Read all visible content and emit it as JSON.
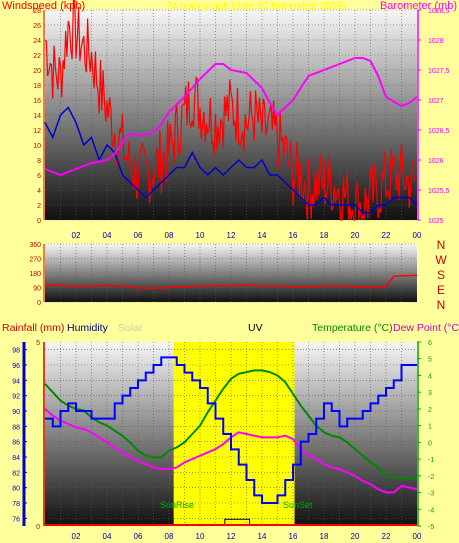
{
  "colors": {
    "page_bg": "#ffff9c",
    "wind": "#ff0000",
    "wind_avg": "#0000cc",
    "baro": "#ff00ff",
    "dir": "#ff0000",
    "rain": "#cc0000",
    "humidity": "#0000ff",
    "temp": "#008800",
    "dew": "#ff00ff",
    "uv": "#000000",
    "daylight": "#ffff00",
    "sun_label": "#00aa00",
    "solar": "#cfcfa0",
    "baro_axis": "#ff00ff",
    "temp_axis": "#00aa00",
    "hum_axis": "#0000cc"
  },
  "top": {
    "left_title": "Windspeed (kph)",
    "center_title": "24 hour graph (date 20 November 2008)",
    "right_title": "Barometer (mb)",
    "wind_ticks": [
      "0",
      "2",
      "4",
      "6",
      "8",
      "10",
      "12",
      "14",
      "16",
      "18",
      "20",
      "22",
      "24",
      "26",
      "28"
    ],
    "baro_ticks": [
      "1025",
      "1025,5",
      "1026",
      "1026,5",
      "1027",
      "1027,5",
      "1028",
      "1028,5"
    ]
  },
  "direction": {
    "ticks": [
      "0",
      "90",
      "180",
      "270",
      "360"
    ],
    "compass": [
      "N",
      "W",
      "S",
      "E",
      "N"
    ]
  },
  "bottom": {
    "rain_label": "Rainfall (mm)",
    "humidity_label": "Humidity",
    "solar_label": "Solar",
    "uv_label": "UV",
    "temp_label": "Temperature (°C)",
    "dew_label": "Dew Point (°C)",
    "hum_ticks": [
      "76",
      "78",
      "80",
      "82",
      "84",
      "86",
      "88",
      "90",
      "92",
      "94",
      "96",
      "98"
    ],
    "rain_ticks": [
      "0",
      "5"
    ],
    "temp_ticks": [
      "-5",
      "-4",
      "-3",
      "-2",
      "-1",
      "0",
      "1",
      "2",
      "3",
      "4",
      "5",
      "6"
    ],
    "sunrise_label": "SunRise",
    "sunset_label": "SunSet"
  },
  "x_ticks": [
    "02",
    "04",
    "06",
    "08",
    "10",
    "12",
    "14",
    "16",
    "18",
    "20",
    "22",
    "00"
  ],
  "chart_data": [
    {
      "type": "line",
      "title": "24 hour graph (date 20 November 2008)",
      "ylabel": "Windspeed (kph)",
      "y2label": "Barometer (mb)",
      "xlim": [
        0,
        24
      ],
      "ylim": [
        0,
        28
      ],
      "y2lim": [
        1025,
        1028.5
      ],
      "series": [
        {
          "name": "Windspeed (kph)",
          "axis": "left",
          "style": "gust",
          "x": [
            0,
            0.5,
            1,
            1.5,
            2,
            2.5,
            3,
            3.5,
            4,
            4.5,
            5,
            5.5,
            6,
            6.5,
            7,
            7.5,
            8,
            8.5,
            9,
            9.5,
            10,
            10.5,
            11,
            11.5,
            12,
            12.5,
            13,
            13.5,
            14,
            14.5,
            15,
            15.5,
            16,
            16.5,
            17,
            17.5,
            18,
            18.5,
            19,
            19.5,
            20,
            20.5,
            21,
            21.5,
            22,
            22.5,
            23,
            23.5,
            24
          ],
          "y": [
            24,
            20,
            19,
            26,
            25,
            23,
            22,
            18,
            15,
            12,
            10,
            7,
            6,
            6,
            7,
            8,
            9,
            12,
            14,
            17,
            15,
            14,
            13,
            14,
            15,
            14,
            13,
            14,
            12,
            12,
            11,
            9,
            6,
            6,
            4,
            5,
            5,
            5,
            4,
            3,
            2,
            2,
            3,
            4,
            5,
            6,
            6,
            5,
            5
          ]
        },
        {
          "name": "Average windspeed",
          "axis": "left",
          "style": "avg",
          "x": [
            0,
            0.5,
            1,
            1.5,
            2,
            2.5,
            3,
            3.5,
            4,
            4.5,
            5,
            5.5,
            6,
            6.5,
            7,
            7.5,
            8,
            8.5,
            9,
            9.5,
            10,
            10.5,
            11,
            11.5,
            12,
            12.5,
            13,
            13.5,
            14,
            14.5,
            15,
            15.5,
            16,
            16.5,
            17,
            17.5,
            18,
            18.5,
            19,
            19.5,
            20,
            20.5,
            21,
            21.5,
            22,
            22.5,
            23,
            23.5,
            24
          ],
          "y": [
            13,
            11,
            14,
            15,
            13,
            10,
            11,
            8,
            10,
            9,
            6,
            5,
            4,
            3,
            4,
            5,
            6,
            7,
            7,
            9,
            7,
            6,
            7,
            6,
            7,
            8,
            7,
            7,
            8,
            6,
            6,
            5,
            4,
            3,
            2,
            2,
            3,
            2,
            2,
            2,
            2,
            1,
            1,
            2,
            2,
            3,
            3,
            3,
            2
          ]
        },
        {
          "name": "Barometer (mb)",
          "axis": "right",
          "x": [
            0,
            1,
            2,
            3,
            4,
            4.5,
            5,
            5.5,
            6,
            7,
            7.5,
            8,
            9,
            10,
            11,
            11.5,
            12,
            13,
            14,
            14.5,
            15,
            16,
            17,
            18,
            19,
            20,
            20.5,
            21,
            21.5,
            22,
            23,
            23.5,
            24
          ],
          "y": [
            1025.85,
            1025.75,
            1025.85,
            1025.95,
            1026,
            1026.1,
            1026.3,
            1026.45,
            1026.4,
            1026.45,
            1026.6,
            1026.8,
            1027.05,
            1027.35,
            1027.6,
            1027.6,
            1027.5,
            1027.45,
            1027.2,
            1026.95,
            1026.75,
            1027,
            1027.4,
            1027.5,
            1027.6,
            1027.7,
            1027.7,
            1027.65,
            1027.4,
            1027.05,
            1026.9,
            1026.95,
            1027.05
          ]
        }
      ]
    },
    {
      "type": "line",
      "ylabel": "Wind direction",
      "xlim": [
        0,
        24
      ],
      "ylim": [
        0,
        360
      ],
      "series": [
        {
          "name": "Wind direction",
          "x": [
            0,
            1,
            2,
            3,
            4,
            5,
            6,
            7,
            8,
            9,
            10,
            11,
            12,
            13,
            14,
            15,
            16,
            17,
            18,
            19,
            20,
            21,
            22,
            22.5,
            23,
            24
          ],
          "y": [
            100,
            105,
            95,
            100,
            102,
            100,
            88,
            85,
            90,
            95,
            98,
            102,
            100,
            105,
            100,
            98,
            95,
            95,
            100,
            100,
            95,
            90,
            95,
            160,
            162,
            165
          ]
        }
      ]
    },
    {
      "type": "line",
      "ylabel": "Humidity",
      "y2label": "Temperature (°C)",
      "xlim": [
        0,
        24
      ],
      "ylim": [
        75,
        99
      ],
      "y2lim": [
        -5,
        6
      ],
      "daylight": [
        8.3,
        16.1
      ],
      "series": [
        {
          "name": "Humidity",
          "axis": "left",
          "x": [
            0,
            0.5,
            1,
            1.5,
            2,
            2.5,
            3,
            3.5,
            4,
            4.5,
            5,
            5.5,
            6,
            6.5,
            7,
            7.5,
            8,
            8.5,
            9,
            9.5,
            10,
            10.5,
            11,
            11.5,
            12,
            12.5,
            13,
            13.5,
            14,
            14.5,
            15,
            15.5,
            16,
            16.5,
            17,
            17.5,
            18,
            18.5,
            19,
            19.5,
            20,
            20.5,
            21,
            21.5,
            22,
            22.5,
            23,
            23.5,
            24
          ],
          "y": [
            89,
            88,
            90,
            91,
            90,
            90,
            89,
            89,
            89,
            91,
            92,
            93,
            94,
            95,
            96,
            97,
            97,
            96,
            95,
            94,
            93,
            91,
            89,
            87,
            85,
            83,
            81,
            79,
            78,
            78,
            79,
            81,
            83,
            86,
            87,
            89,
            91,
            90,
            88,
            89,
            89,
            90,
            91,
            92,
            93,
            94,
            96,
            96,
            96
          ]
        },
        {
          "name": "Temperature (°C)",
          "axis": "right",
          "x": [
            0,
            0.5,
            1,
            1.5,
            2,
            2.5,
            3,
            3.5,
            4,
            4.5,
            5,
            5.5,
            6,
            6.5,
            7,
            7.5,
            8,
            8.5,
            9,
            9.5,
            10,
            10.5,
            11,
            11.5,
            12,
            12.5,
            13,
            13.5,
            14,
            14.5,
            15,
            15.5,
            16,
            16.5,
            17,
            17.5,
            18,
            18.5,
            19,
            19.5,
            20,
            20.5,
            21,
            21.5,
            22,
            22.5,
            23,
            23.5,
            24
          ],
          "y": [
            3.5,
            3,
            2.5,
            2.2,
            2,
            1.9,
            1.5,
            1.2,
            1,
            0.7,
            0.4,
            0,
            -0.5,
            -0.8,
            -0.9,
            -0.9,
            -0.5,
            -0.3,
            0,
            0.5,
            1,
            1.8,
            2.5,
            3.2,
            3.8,
            4.1,
            4.2,
            4.3,
            4.3,
            4.2,
            4,
            3.6,
            2.9,
            2.2,
            1.6,
            1,
            0.6,
            0.4,
            0.3,
            0,
            -0.4,
            -0.8,
            -1.2,
            -1.5,
            -2,
            -2.1,
            -2.1,
            -2.2,
            -2.1
          ]
        },
        {
          "name": "Dew Point (°C)",
          "axis": "right",
          "x": [
            0,
            0.5,
            1,
            1.5,
            2,
            2.5,
            3,
            3.5,
            4,
            4.5,
            5,
            5.5,
            6,
            6.5,
            7,
            7.5,
            8,
            8.5,
            9,
            9.5,
            10,
            10.5,
            11,
            11.5,
            12,
            12.5,
            13,
            13.5,
            14,
            14.5,
            15,
            15.5,
            16,
            16.5,
            17,
            17.5,
            18,
            18.5,
            19,
            19.5,
            20,
            20.5,
            21,
            21.5,
            22,
            22.5,
            23,
            23.5,
            24
          ],
          "y": [
            2,
            1.6,
            1.3,
            1.1,
            0.9,
            0.8,
            0.6,
            0.3,
            0,
            -0.3,
            -0.6,
            -0.9,
            -1.1,
            -1.3,
            -1.5,
            -1.6,
            -1.6,
            -1.5,
            -1.2,
            -1,
            -0.8,
            -0.6,
            -0.4,
            -0.1,
            0.3,
            0.6,
            0.5,
            0.4,
            0.3,
            0.3,
            0.3,
            0.4,
            0.2,
            -0.4,
            -0.8,
            -1,
            -1.3,
            -1.5,
            -1.6,
            -1.8,
            -2,
            -2.3,
            -2.5,
            -2.8,
            -3,
            -3,
            -2.6,
            -2.7,
            -2.8
          ]
        },
        {
          "name": "UV",
          "axis": "right",
          "style": "uv",
          "x": [
            11.6,
            11.6,
            13.2,
            13.2
          ],
          "y": [
            -5,
            -4.6,
            -4.6,
            -5
          ]
        }
      ]
    }
  ]
}
